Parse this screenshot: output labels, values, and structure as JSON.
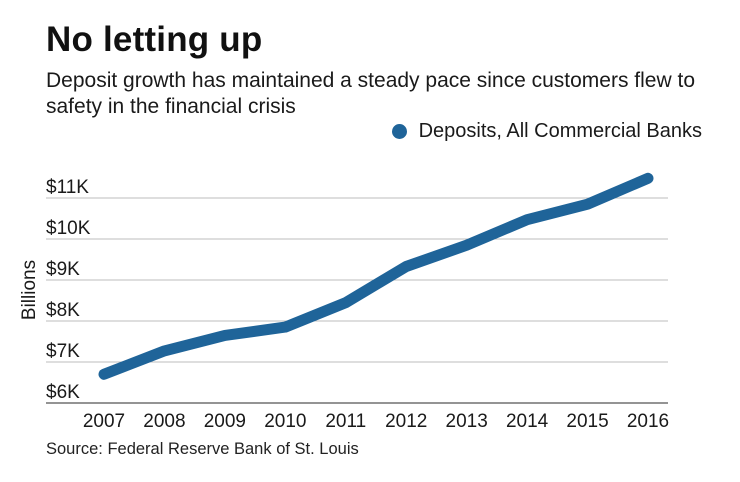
{
  "chart_data": {
    "type": "line",
    "title": "No letting up",
    "subtitle": "Deposit growth has maintained a steady pace since customers flew to safety in the financial crisis",
    "xlabel": "",
    "ylabel": "Billions",
    "categories": [
      "2007",
      "2008",
      "2009",
      "2010",
      "2011",
      "2012",
      "2013",
      "2014",
      "2015",
      "2016"
    ],
    "series": [
      {
        "name": "Deposits, All Commercial Banks",
        "color": "#1f6499",
        "values": [
          6700,
          7270,
          7650,
          7850,
          8450,
          9330,
          9850,
          10470,
          10850,
          11480
        ]
      }
    ],
    "yticks": [
      6000,
      7000,
      8000,
      9000,
      10000,
      11000
    ],
    "ytick_labels": [
      "$6K",
      "$7K",
      "$8K",
      "$9K",
      "$10K",
      "$11K"
    ],
    "ylim": [
      6000,
      11000
    ],
    "grid": true,
    "legend": "top-right",
    "source": "Source: Federal Reserve Bank of St. Louis"
  }
}
